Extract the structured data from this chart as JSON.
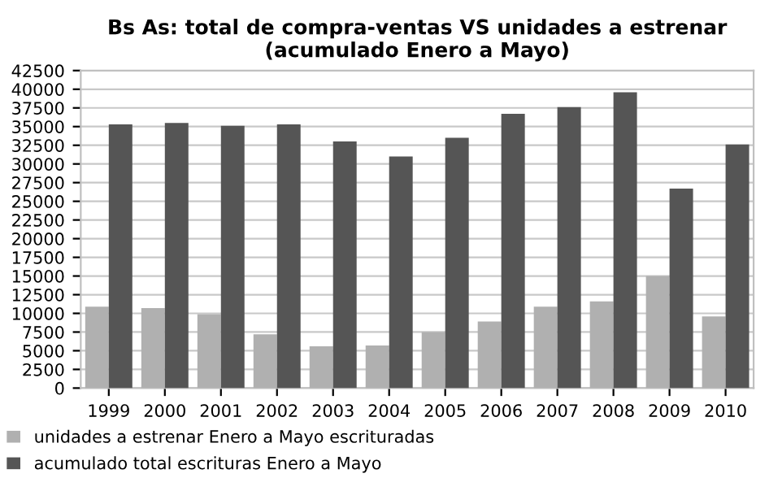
{
  "chart_data": {
    "type": "bar",
    "title": "Bs As: total de compra-ventas VS unidades a estrenar\n(acumulado Enero a Mayo)",
    "categories": [
      "1999",
      "2000",
      "2001",
      "2002",
      "2003",
      "2004",
      "2005",
      "2006",
      "2007",
      "2008",
      "2009",
      "2010"
    ],
    "series": [
      {
        "name": "unidades a estrenar Enero a Mayo escrituradas",
        "color": "#b0b0b0",
        "values": [
          10900,
          10700,
          9900,
          7200,
          5600,
          5700,
          7500,
          8900,
          10900,
          11600,
          15000,
          9600
        ]
      },
      {
        "name": "acumulado total escrituras Enero a Mayo",
        "color": "#555555",
        "values": [
          35300,
          35500,
          35100,
          35300,
          33000,
          31000,
          33500,
          36700,
          37600,
          39600,
          26700,
          32600
        ]
      }
    ],
    "ylim": [
      0,
      42500
    ],
    "yticks": [
      0,
      2500,
      5000,
      7500,
      10000,
      12500,
      15000,
      17500,
      20000,
      22500,
      25000,
      27500,
      30000,
      32500,
      35000,
      37500,
      40000,
      42500
    ],
    "grid": "y",
    "legend": "bottom left"
  }
}
